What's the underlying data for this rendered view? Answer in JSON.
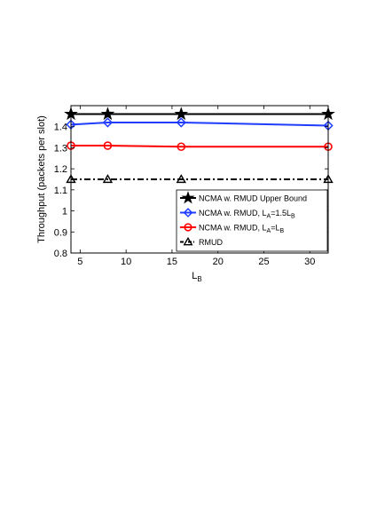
{
  "chart_data": {
    "type": "line",
    "xlabel": "L",
    "xlabel_sub": "B",
    "ylabel": "Throughput (packets per slot)",
    "xlim": [
      4,
      32
    ],
    "ylim": [
      0.8,
      1.5
    ],
    "xticks": [
      5,
      10,
      15,
      20,
      25,
      30
    ],
    "yticks": [
      0.8,
      0.9,
      1.0,
      1.1,
      1.2,
      1.3,
      1.4
    ],
    "ytick_labels": [
      "0.8",
      "0.9",
      "1",
      "1.1",
      "1.2",
      "1.3",
      "1.4"
    ],
    "grid": false,
    "legend_position": "bottom-right",
    "x": [
      4,
      8,
      16,
      32
    ],
    "series": [
      {
        "name": "NCMA w. RMUD Upper Bound",
        "legend_parts": [
          {
            "t": "NCMA w. RMUD Upper Bound"
          }
        ],
        "values": [
          1.46,
          1.46,
          1.46,
          1.46
        ],
        "color": "#000000",
        "marker": "star",
        "dash": "solid"
      },
      {
        "name": "NCMA w. RMUD, L_A=1.5L_B",
        "legend_parts": [
          {
            "t": "NCMA w. RMUD, L"
          },
          {
            "t": "A",
            "sub": true
          },
          {
            "t": "=1.5L"
          },
          {
            "t": "B",
            "sub": true
          }
        ],
        "values": [
          1.41,
          1.42,
          1.42,
          1.405
        ],
        "color": "#1f3cff",
        "marker": "diamond",
        "dash": "solid"
      },
      {
        "name": "NCMA w. RMUD, L_A=L_B",
        "legend_parts": [
          {
            "t": "NCMA w. RMUD, L"
          },
          {
            "t": "A",
            "sub": true
          },
          {
            "t": "=L"
          },
          {
            "t": "B",
            "sub": true
          }
        ],
        "values": [
          1.31,
          1.31,
          1.305,
          1.305
        ],
        "color": "#ff0000",
        "marker": "circle",
        "dash": "solid"
      },
      {
        "name": "RMUD",
        "legend_parts": [
          {
            "t": "RMUD"
          }
        ],
        "values": [
          1.15,
          1.15,
          1.15,
          1.15
        ],
        "color": "#000000",
        "marker": "triangle",
        "dash": "dashdot"
      }
    ]
  }
}
